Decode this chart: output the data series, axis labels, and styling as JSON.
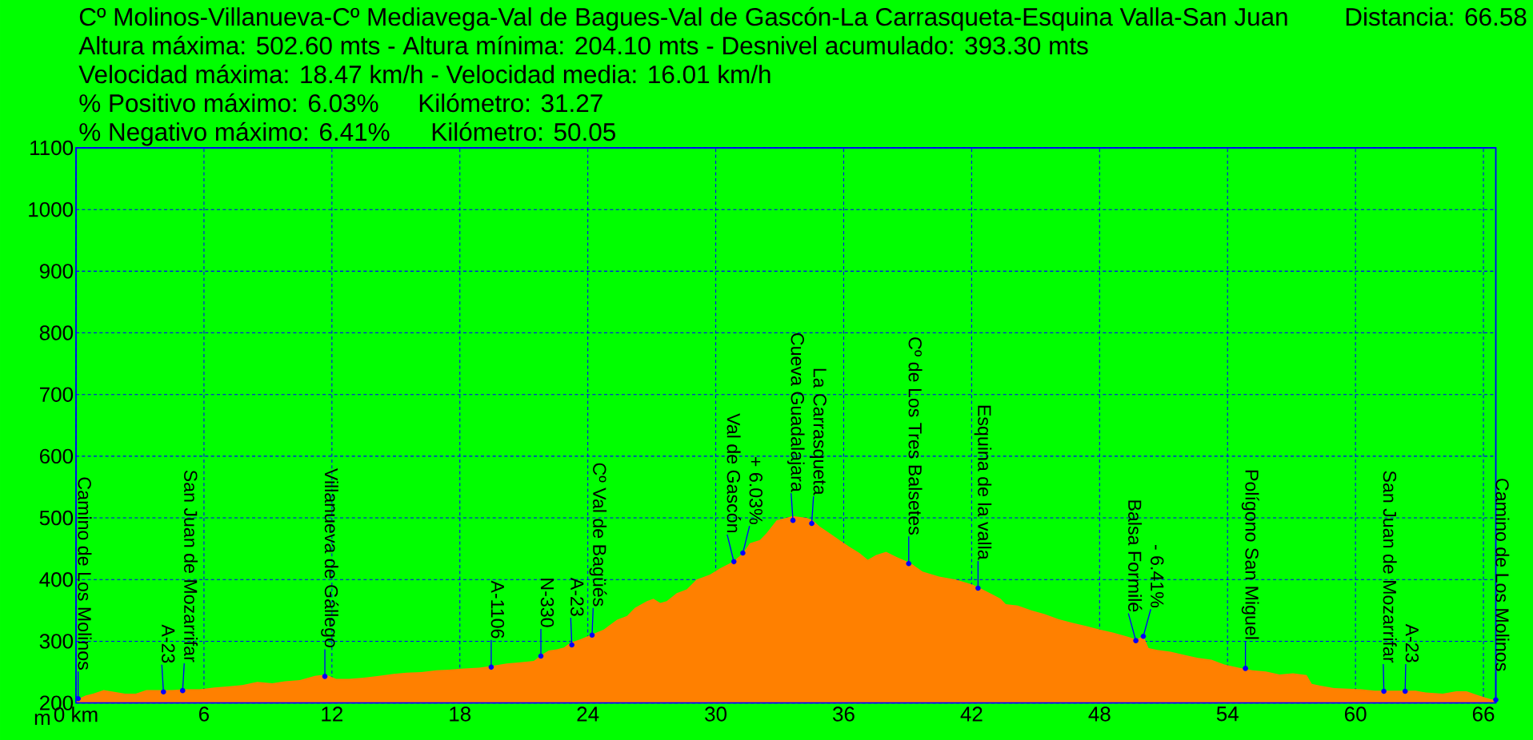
{
  "chart_data": {
    "type": "area",
    "title": "Cº Molinos-Villanueva-Cº Mediavega-Val de Bagues-Val de Gascón-La Carrasqueta-Esquina Valla-San Juan",
    "ylabel": "m",
    "color": "#ff8000",
    "grid": true,
    "xlim": [
      0,
      66.58
    ],
    "ylim": [
      200,
      1100
    ],
    "xticks": [
      {
        "value": 0,
        "label": "0 km"
      },
      6,
      12,
      18,
      24,
      30,
      36,
      42,
      48,
      54,
      60,
      66
    ],
    "yticks": [
      200,
      300,
      400,
      500,
      600,
      700,
      800,
      900,
      1000,
      1100
    ],
    "x": [
      0,
      0.46,
      0.8,
      1.3,
      1.8,
      2.3,
      2.8,
      3.3,
      3.8,
      4.5,
      5.1,
      5.8,
      6.5,
      7.2,
      7.8,
      8.5,
      9.2,
      9.8,
      10.5,
      11.2,
      11.7,
      12.2,
      12.8,
      13.5,
      14.2,
      14.9,
      15.5,
      16.2,
      16.9,
      17.5,
      18.2,
      18.9,
      19.5,
      20.2,
      20.85,
      21.47,
      21.83,
      22.17,
      22.56,
      22.88,
      23.19,
      23.65,
      24.2,
      24.75,
      25.37,
      25.84,
      26.2,
      26.77,
      27.08,
      27.4,
      27.7,
      28.17,
      28.64,
      29.1,
      29.73,
      30.2,
      30.82,
      31.29,
      31.6,
      32.07,
      32.38,
      32.85,
      33.31,
      33.6,
      34.25,
      34.56,
      34.87,
      35.34,
      35.8,
      36.27,
      36.74,
      37.13,
      37.52,
      37.99,
      38.46,
      39.13,
      39.7,
      40.48,
      41.26,
      42.04,
      42.4,
      42.97,
      43.36,
      43.6,
      44.16,
      44.8,
      45.43,
      46.07,
      46.71,
      47.35,
      48.0,
      48.62,
      49.26,
      49.71,
      50.06,
      50.3,
      50.7,
      51.33,
      51.97,
      52.61,
      53.25,
      53.88,
      54.52,
      55.16,
      55.8,
      56.44,
      57.07,
      57.71,
      57.95,
      58.35,
      58.99,
      59.63,
      60.26,
      60.9,
      61.54,
      62.18,
      62.82,
      63.29,
      64.09,
      64.73,
      65.21,
      65.69,
      66.16,
      66.58
    ],
    "values": [
      205,
      212,
      215,
      221,
      218,
      215,
      215,
      221,
      221,
      221,
      222,
      222,
      225,
      227,
      229,
      234,
      232,
      235,
      237,
      244,
      246,
      239,
      239,
      241,
      244,
      247,
      249,
      250,
      253,
      254,
      256,
      257,
      260,
      264,
      266,
      268,
      278,
      285,
      287,
      290,
      298,
      303,
      311,
      319,
      335,
      341,
      354,
      365,
      369,
      362,
      365,
      378,
      384,
      400,
      408,
      418,
      429,
      443,
      459,
      464,
      475,
      496,
      500,
      503,
      500,
      496,
      486,
      475,
      464,
      453,
      443,
      432,
      440,
      445,
      437,
      427,
      413,
      405,
      400,
      392,
      386,
      376,
      369,
      360,
      358,
      350,
      344,
      336,
      330,
      325,
      319,
      314,
      308,
      303,
      308,
      289,
      286,
      283,
      278,
      273,
      270,
      262,
      257,
      253,
      251,
      246,
      248,
      245,
      231,
      228,
      224,
      223,
      222,
      220,
      220,
      220,
      220,
      217,
      215,
      219,
      219,
      213,
      208,
      204
    ],
    "annotations": [
      "Distancia: 66.58",
      "Altura máxima: 502.60 mts - Altura mínima: 204.10 mts - Desnivel acumulado: 393.30 mts",
      "Velocidad máxima: 18.47 km/h - Velocidad media: 16.01 km/h",
      "% Positivo máximo: 6.03%",
      "Kilómetro: 31.27",
      "% Negativo máximo: 6.41%",
      "Kilómetro: 50.05",
      {
        "text": "Camino de Los Molinos",
        "x": 0.1,
        "y": 207
      },
      {
        "text": "A-23",
        "x": 4.1,
        "y": 218
      },
      {
        "text": "San Juan de Mozarrifar",
        "x": 5.0,
        "y": 220
      },
      {
        "text": "Villanueva de Gállego",
        "x": 11.67,
        "y": 243
      },
      {
        "text": "A-1106",
        "x": 19.47,
        "y": 258
      },
      {
        "text": "N-330",
        "x": 21.8,
        "y": 276
      },
      {
        "text": "A-23",
        "x": 23.25,
        "y": 294
      },
      {
        "text": "Cº Val de Bagüés",
        "x": 24.2,
        "y": 310
      },
      {
        "text": "Val de Gascón",
        "x": 30.85,
        "y": 429
      },
      {
        "text": "+ 6.03%",
        "x": 31.27,
        "y": 443
      },
      {
        "text": "Cueva Guadalajara",
        "x": 33.62,
        "y": 496
      },
      {
        "text": "La Carrasqueta",
        "x": 34.5,
        "y": 491
      },
      {
        "text": "Cº de Los Tres Balsetes",
        "x": 39.05,
        "y": 426
      },
      {
        "text": "Esquina de la valla",
        "x": 42.3,
        "y": 386
      },
      {
        "text": "Balsa Formilé",
        "x": 49.7,
        "y": 301
      },
      {
        "text": "- 6.41%",
        "x": 50.05,
        "y": 308
      },
      {
        "text": "Polígono San Miguel",
        "x": 54.84,
        "y": 256
      },
      {
        "text": "San Juan de Mozarrifar",
        "x": 61.33,
        "y": 219
      },
      {
        "text": "A-23",
        "x": 62.33,
        "y": 219
      },
      {
        "text": "Camino de Los Molinos",
        "x": 66.58,
        "y": 205
      }
    ]
  }
}
